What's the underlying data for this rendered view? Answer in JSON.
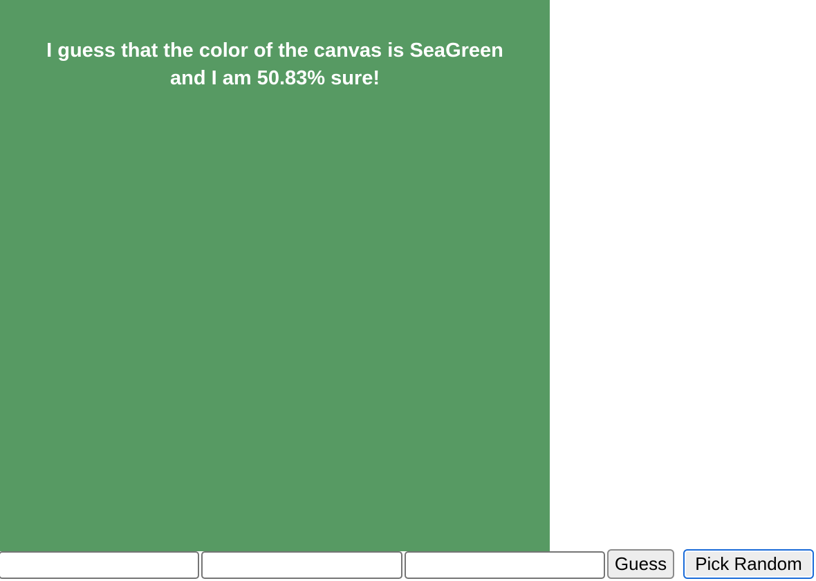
{
  "page": {
    "background_color": "#ffffff"
  },
  "canvas": {
    "background_color": "#579a63",
    "text_color": "#ffffff",
    "caption_line1": "I guess that the color of the canvas is SeaGreen",
    "caption_line2": "and I am 50.83% sure!",
    "guessed_color_name": "SeaGreen",
    "confidence_percent": 50.83
  },
  "controls": {
    "inputs": [
      {
        "value": ""
      },
      {
        "value": ""
      },
      {
        "value": ""
      }
    ],
    "buttons": {
      "guess": "Guess",
      "pick_random": "Pick Random"
    },
    "focused_button": "pick_random",
    "focus_ring_color": "#1a6bd8",
    "input_border_color": "#757575",
    "button_background_color": "#ededed"
  }
}
